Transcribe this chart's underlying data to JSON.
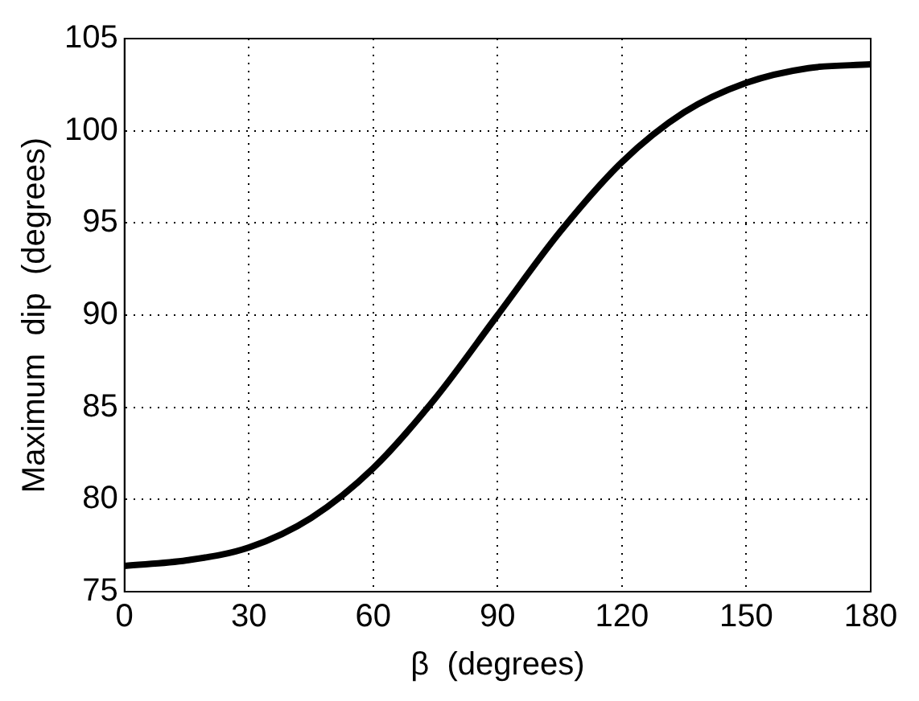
{
  "chart_data": {
    "type": "line",
    "xlabel": "β  (degrees)",
    "ylabel": "Maximum  dip  (degrees)",
    "x": [
      0,
      15,
      30,
      45,
      60,
      75,
      90,
      105,
      120,
      135,
      150,
      165,
      180
    ],
    "series": [
      {
        "color": "#000000",
        "values": [
          76.4,
          76.7,
          77.4,
          79.0,
          81.7,
          85.5,
          90.0,
          94.5,
          98.3,
          101.0,
          102.6,
          103.4,
          103.6
        ]
      }
    ],
    "xlim": [
      0,
      180
    ],
    "xticks": [
      0,
      30,
      60,
      90,
      120,
      150,
      180
    ],
    "ylim": [
      75,
      105
    ],
    "yticks": [
      75,
      80,
      85,
      90,
      95,
      100,
      105
    ],
    "grid": true,
    "legend": false,
    "marker": "none",
    "line_style": "solid"
  }
}
